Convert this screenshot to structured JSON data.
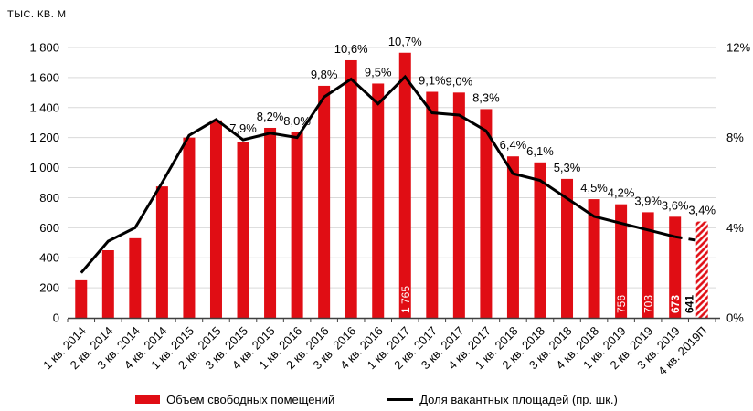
{
  "chart_data": {
    "type": "bar",
    "combo_types": [
      "bar",
      "line"
    ],
    "grid": true,
    "legend_position": "bottom",
    "colors": {
      "bar_red": "#e00d14",
      "line_black": "#000000",
      "grid_gray": "#d9d9d9",
      "axis_gray": "#404040",
      "text_black": "#000000"
    },
    "left_axis": {
      "title": "ТЫС. КВ. М",
      "min": 0,
      "max": 1800,
      "tick_step": 200,
      "tick_labels": [
        "0",
        "200",
        "400",
        "600",
        "800",
        "1 000",
        "1 200",
        "1 400",
        "1 600",
        "1 800"
      ]
    },
    "right_axis": {
      "min": 0,
      "max": 12,
      "tick_labels": [
        "0%",
        "4%",
        "8%",
        "12%"
      ]
    },
    "categories": [
      "1 кв. 2014",
      "2 кв. 2014",
      "3 кв. 2014",
      "4 кв. 2014",
      "1 кв. 2015",
      "2 кв. 2015",
      "3 кв. 2015",
      "4 кв. 2015",
      "1 кв. 2016",
      "2 кв. 2016",
      "3 кв. 2016",
      "4 кв. 2016",
      "1 кв. 2017",
      "2 кв. 2017",
      "3 кв. 2017",
      "4 кв. 2017",
      "1 кв. 2018",
      "2 кв. 2018",
      "3 кв. 2018",
      "4 кв. 2018",
      "1 кв. 2019",
      "2 кв. 2019",
      "3 кв. 2019",
      "4 кв. 2019П"
    ],
    "series": [
      {
        "name": "Объем свободных помещений",
        "type": "bar",
        "axis": "left",
        "color": "#e00d14",
        "values": [
          250,
          450,
          530,
          875,
          1200,
          1315,
          1170,
          1265,
          1235,
          1545,
          1715,
          1560,
          1765,
          1505,
          1500,
          1390,
          1075,
          1035,
          925,
          790,
          756,
          703,
          673,
          641
        ],
        "forecast_last": true,
        "value_labels": [
          {
            "index": 12,
            "text": "1 765",
            "color": "#ffffff",
            "bold": false,
            "placement": "inside"
          },
          {
            "index": 20,
            "text": "756",
            "color": "#ffffff",
            "bold": false,
            "placement": "inside"
          },
          {
            "index": 21,
            "text": "703",
            "color": "#ffffff",
            "bold": false,
            "placement": "inside"
          },
          {
            "index": 22,
            "text": "673",
            "color": "#ffffff",
            "bold": true,
            "placement": "inside"
          },
          {
            "index": 23,
            "text": "641",
            "color": "#000000",
            "bold": true,
            "placement": "outside-left"
          }
        ]
      },
      {
        "name": "Доля вакантных площадей (пр. шк.)",
        "type": "line",
        "axis": "right",
        "color": "#000000",
        "values": [
          2.0,
          3.4,
          4.0,
          6.0,
          8.1,
          8.8,
          7.9,
          8.2,
          8.0,
          9.8,
          10.6,
          9.5,
          10.7,
          9.1,
          9.0,
          8.3,
          6.4,
          6.1,
          5.3,
          4.5,
          4.2,
          3.9,
          3.6,
          3.4
        ],
        "point_labels": [
          null,
          null,
          null,
          null,
          null,
          null,
          "7,9%",
          "8,2%",
          "8,0%",
          "9,8%",
          "10,6%",
          "9,5%",
          "10,7%",
          "9,1%",
          "9,0%",
          "8,3%",
          "6,4%",
          "6,1%",
          "5,3%",
          "4,5%",
          "4,2%",
          "3,9%",
          "3,6%",
          "3,4%"
        ],
        "dashed_last_segment": true
      }
    ]
  }
}
